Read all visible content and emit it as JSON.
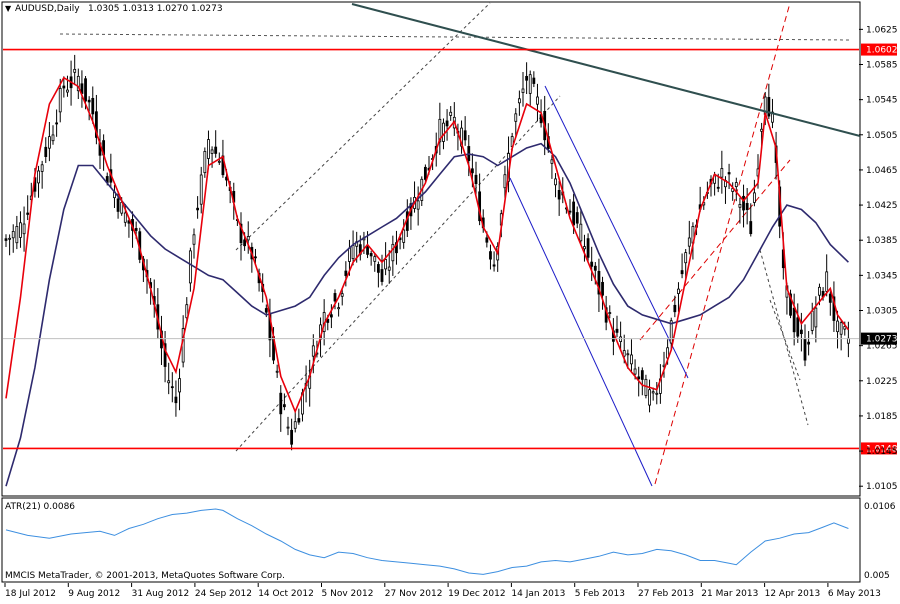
{
  "header": {
    "symbol_label": "AUDUSD,Daily",
    "ohlc_label": "1.0305 1.0313 1.0270 1.0273"
  },
  "indicator": {
    "label": "ATR(21) 0.0086",
    "scale_max": "0.0106",
    "scale_min": "0.005"
  },
  "copyright": "MMCIS MetaTrader, © 2001-2013, MetaQuotes Software Corp.",
  "colors": {
    "candle": "#000000",
    "fast_ma": "#e8000b",
    "slow_ma": "#2e2a6e",
    "level_line": "#ff0000",
    "trendline": "#2f4f4f",
    "atr": "#3d8fe0",
    "channel_blue": "#1c1cc8",
    "grid": "#c0c0c0"
  },
  "chart_data": [
    {
      "type": "candlestick",
      "title": "AUDUSD,Daily",
      "ylim": [
        1.0095,
        1.0655
      ],
      "y_ticks": [
        "1.0625",
        "1.0585",
        "1.0545",
        "1.0505",
        "1.0465",
        "1.0425",
        "1.0385",
        "1.0345",
        "1.0305",
        "1.0265",
        "1.0225",
        "1.0185",
        "1.0145",
        "1.0105"
      ],
      "x_ticks": [
        "18 Jul 2012",
        "9 Aug 2012",
        "31 Aug 2012",
        "24 Sep 2012",
        "14 Oct 2012",
        "5 Nov 2012",
        "27 Nov 2012",
        "19 Dec 2012",
        "14 Jan 2013",
        "5 Feb 2013",
        "27 Feb 2013",
        "21 Mar 2013",
        "12 Apr 2013",
        "6 May 2013"
      ],
      "close_path": [
        [
          0,
          1.0385
        ],
        [
          4,
          1.04
        ],
        [
          8,
          1.045
        ],
        [
          12,
          1.05
        ],
        [
          16,
          1.056
        ],
        [
          20,
          1.057
        ],
        [
          24,
          1.053
        ],
        [
          28,
          1.046
        ],
        [
          32,
          1.042
        ],
        [
          36,
          1.039
        ],
        [
          40,
          1.033
        ],
        [
          44,
          1.024
        ],
        [
          47,
          1.02
        ],
        [
          52,
          1.04
        ],
        [
          56,
          1.05
        ],
        [
          60,
          1.047
        ],
        [
          64,
          1.04
        ],
        [
          68,
          1.037
        ],
        [
          72,
          1.03
        ],
        [
          76,
          1.02
        ],
        [
          79,
          1.016
        ],
        [
          84,
          1.024
        ],
        [
          88,
          1.03
        ],
        [
          92,
          1.032
        ],
        [
          96,
          1.038
        ],
        [
          100,
          1.038
        ],
        [
          104,
          1.034
        ],
        [
          108,
          1.038
        ],
        [
          112,
          1.042
        ],
        [
          116,
          1.046
        ],
        [
          120,
          1.051
        ],
        [
          124,
          1.052
        ],
        [
          128,
          1.048
        ],
        [
          132,
          1.04
        ],
        [
          135,
          1.036
        ],
        [
          140,
          1.051
        ],
        [
          144,
          1.057
        ],
        [
          148,
          1.053
        ],
        [
          152,
          1.045
        ],
        [
          156,
          1.042
        ],
        [
          160,
          1.038
        ],
        [
          164,
          1.033
        ],
        [
          168,
          1.028
        ],
        [
          172,
          1.025
        ],
        [
          176,
          1.022
        ],
        [
          179,
          1.02
        ],
        [
          182,
          1.025
        ],
        [
          186,
          1.033
        ],
        [
          190,
          1.04
        ],
        [
          194,
          1.044
        ],
        [
          198,
          1.046
        ],
        [
          202,
          1.044
        ],
        [
          206,
          1.04
        ],
        [
          210,
          1.056
        ],
        [
          212,
          1.052
        ],
        [
          215,
          1.034
        ],
        [
          218,
          1.029
        ],
        [
          221,
          1.026
        ],
        [
          224,
          1.031
        ],
        [
          227,
          1.034
        ],
        [
          230,
          1.028
        ],
        [
          233,
          1.0273
        ]
      ],
      "fast_ma": [
        [
          0,
          1.0205
        ],
        [
          4,
          1.032
        ],
        [
          8,
          1.046
        ],
        [
          12,
          1.054
        ],
        [
          16,
          1.057
        ],
        [
          20,
          1.056
        ],
        [
          24,
          1.052
        ],
        [
          28,
          1.047
        ],
        [
          32,
          1.043
        ],
        [
          36,
          1.039
        ],
        [
          40,
          1.033
        ],
        [
          44,
          1.026
        ],
        [
          47,
          1.0235
        ],
        [
          52,
          1.033
        ],
        [
          56,
          1.047
        ],
        [
          60,
          1.048
        ],
        [
          64,
          1.041
        ],
        [
          68,
          1.037
        ],
        [
          72,
          1.032
        ],
        [
          76,
          1.023
        ],
        [
          80,
          1.019
        ],
        [
          84,
          1.023
        ],
        [
          88,
          1.029
        ],
        [
          92,
          1.032
        ],
        [
          96,
          1.036
        ],
        [
          100,
          1.038
        ],
        [
          104,
          1.036
        ],
        [
          108,
          1.038
        ],
        [
          112,
          1.042
        ],
        [
          116,
          1.045
        ],
        [
          120,
          1.05
        ],
        [
          124,
          1.052
        ],
        [
          128,
          1.047
        ],
        [
          132,
          1.04
        ],
        [
          136,
          1.037
        ],
        [
          140,
          1.049
        ],
        [
          144,
          1.054
        ],
        [
          148,
          1.053
        ],
        [
          152,
          1.047
        ],
        [
          156,
          1.041
        ],
        [
          160,
          1.037
        ],
        [
          164,
          1.033
        ],
        [
          168,
          1.028
        ],
        [
          172,
          1.024
        ],
        [
          176,
          1.022
        ],
        [
          180,
          1.0215
        ],
        [
          184,
          1.026
        ],
        [
          188,
          1.034
        ],
        [
          192,
          1.042
        ],
        [
          196,
          1.046
        ],
        [
          200,
          1.045
        ],
        [
          204,
          1.043
        ],
        [
          208,
          1.045
        ],
        [
          210,
          1.053
        ],
        [
          213,
          1.049
        ],
        [
          216,
          1.033
        ],
        [
          220,
          1.029
        ],
        [
          224,
          1.031
        ],
        [
          228,
          1.033
        ],
        [
          230,
          1.03
        ],
        [
          233,
          1.0283
        ]
      ],
      "slow_ma": [
        [
          0,
          1.0105
        ],
        [
          4,
          1.016
        ],
        [
          8,
          1.024
        ],
        [
          12,
          1.034
        ],
        [
          16,
          1.042
        ],
        [
          20,
          1.047
        ],
        [
          24,
          1.047
        ],
        [
          28,
          1.045
        ],
        [
          32,
          1.043
        ],
        [
          36,
          1.041
        ],
        [
          40,
          1.039
        ],
        [
          44,
          1.0375
        ],
        [
          48,
          1.0365
        ],
        [
          52,
          1.0355
        ],
        [
          56,
          1.0345
        ],
        [
          60,
          1.034
        ],
        [
          64,
          1.0325
        ],
        [
          68,
          1.031
        ],
        [
          72,
          1.03
        ],
        [
          76,
          1.0305
        ],
        [
          80,
          1.031
        ],
        [
          84,
          1.032
        ],
        [
          88,
          1.0345
        ],
        [
          92,
          1.0365
        ],
        [
          96,
          1.038
        ],
        [
          100,
          1.039
        ],
        [
          104,
          1.04
        ],
        [
          108,
          1.041
        ],
        [
          112,
          1.0425
        ],
        [
          116,
          1.044
        ],
        [
          120,
          1.046
        ],
        [
          124,
          1.048
        ],
        [
          128,
          1.0483
        ],
        [
          132,
          1.048
        ],
        [
          136,
          1.047
        ],
        [
          140,
          1.048
        ],
        [
          144,
          1.049
        ],
        [
          148,
          1.0495
        ],
        [
          152,
          1.048
        ],
        [
          156,
          1.045
        ],
        [
          160,
          1.041
        ],
        [
          164,
          1.037
        ],
        [
          168,
          1.0335
        ],
        [
          172,
          1.031
        ],
        [
          176,
          1.03
        ],
        [
          180,
          1.0295
        ],
        [
          184,
          1.029
        ],
        [
          188,
          1.0295
        ],
        [
          192,
          1.03
        ],
        [
          196,
          1.031
        ],
        [
          200,
          1.032
        ],
        [
          204,
          1.034
        ],
        [
          208,
          1.037
        ],
        [
          212,
          1.04
        ],
        [
          216,
          1.0425
        ],
        [
          220,
          1.042
        ],
        [
          224,
          1.0405
        ],
        [
          228,
          1.038
        ],
        [
          233,
          1.036
        ]
      ],
      "levels": [
        {
          "label": "1.0602",
          "value": 1.0602
        },
        {
          "label": "1.0148",
          "value": 1.0148
        }
      ],
      "current_price": {
        "label": "1.0273",
        "value": 1.0273
      }
    },
    {
      "type": "line",
      "title": "ATR(21) 0.0086",
      "ylim": [
        0.005,
        0.0106
      ],
      "values": [
        [
          0,
          0.0086
        ],
        [
          6,
          0.0082
        ],
        [
          12,
          0.008
        ],
        [
          18,
          0.0083
        ],
        [
          22,
          0.0084
        ],
        [
          26,
          0.0085
        ],
        [
          30,
          0.0082
        ],
        [
          34,
          0.0087
        ],
        [
          38,
          0.009
        ],
        [
          42,
          0.0094
        ],
        [
          46,
          0.0097
        ],
        [
          50,
          0.0098
        ],
        [
          54,
          0.01
        ],
        [
          58,
          0.0101
        ],
        [
          60,
          0.01
        ],
        [
          64,
          0.0094
        ],
        [
          68,
          0.0089
        ],
        [
          72,
          0.0083
        ],
        [
          76,
          0.0078
        ],
        [
          80,
          0.0072
        ],
        [
          84,
          0.0068
        ],
        [
          88,
          0.0066
        ],
        [
          92,
          0.007
        ],
        [
          96,
          0.0069
        ],
        [
          100,
          0.0066
        ],
        [
          104,
          0.0064
        ],
        [
          108,
          0.0063
        ],
        [
          112,
          0.0062
        ],
        [
          116,
          0.0061
        ],
        [
          120,
          0.006
        ],
        [
          124,
          0.0058
        ],
        [
          128,
          0.0055
        ],
        [
          132,
          0.0054
        ],
        [
          136,
          0.0056
        ],
        [
          140,
          0.0059
        ],
        [
          144,
          0.006
        ],
        [
          148,
          0.0063
        ],
        [
          152,
          0.0064
        ],
        [
          156,
          0.0063
        ],
        [
          160,
          0.0065
        ],
        [
          164,
          0.0067
        ],
        [
          168,
          0.007
        ],
        [
          172,
          0.0068
        ],
        [
          176,
          0.0069
        ],
        [
          180,
          0.0072
        ],
        [
          184,
          0.0071
        ],
        [
          188,
          0.0068
        ],
        [
          192,
          0.0064
        ],
        [
          196,
          0.0064
        ],
        [
          200,
          0.0062
        ],
        [
          202,
          0.0061
        ],
        [
          206,
          0.007
        ],
        [
          210,
          0.0078
        ],
        [
          214,
          0.008
        ],
        [
          218,
          0.0083
        ],
        [
          222,
          0.0084
        ],
        [
          226,
          0.0088
        ],
        [
          229,
          0.0091
        ],
        [
          233,
          0.0087
        ]
      ]
    }
  ]
}
